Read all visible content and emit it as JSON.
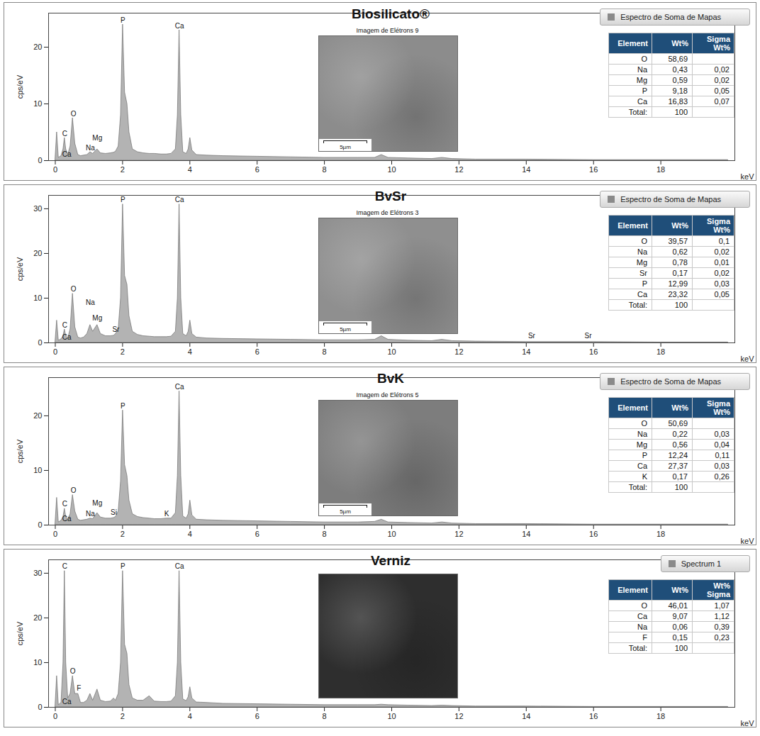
{
  "chart_data": [
    {
      "type": "area",
      "title": "Biosilicato®",
      "x_label": "keV",
      "y_label": "cps/eV",
      "xlim": [
        -0.2,
        20.2
      ],
      "xticks": [
        0,
        2,
        4,
        6,
        8,
        10,
        12,
        14,
        16,
        18
      ],
      "ylim": [
        0,
        26
      ],
      "yticks": [
        0,
        10,
        20
      ],
      "grid": false,
      "legend": "top-right",
      "x": [
        0,
        0.05,
        0.1,
        0.18,
        0.24,
        0.28,
        0.32,
        0.38,
        0.45,
        0.52,
        0.59,
        0.68,
        0.76,
        0.85,
        0.95,
        1.04,
        1.12,
        1.25,
        1.35,
        1.5,
        1.65,
        1.74,
        1.8,
        1.88,
        1.95,
        2.01,
        2.07,
        2.14,
        2.2,
        2.3,
        2.45,
        2.62,
        2.8,
        2.95,
        3.15,
        3.31,
        3.45,
        3.58,
        3.64,
        3.69,
        3.74,
        3.8,
        3.9,
        3.96,
        4.01,
        4.07,
        4.2,
        4.5,
        5,
        6,
        7,
        8,
        9,
        9.5,
        9.7,
        9.9,
        10.5,
        11.2,
        11.5,
        11.8,
        12.5,
        14,
        16,
        18,
        20
      ],
      "series": [
        {
          "name": "Espectro de Soma de Mapas",
          "color": "#b3b3b3",
          "values": [
            0,
            5,
            0.5,
            0.8,
            2,
            4,
            2,
            1,
            2.5,
            7.5,
            3,
            1,
            0.8,
            0.9,
            1,
            1.5,
            1.2,
            2,
            1.3,
            1.2,
            1.3,
            1.4,
            1.6,
            2.5,
            8,
            24,
            12,
            10,
            5,
            2,
            1.5,
            1.3,
            1.2,
            1.2,
            1.1,
            1.1,
            1.2,
            2,
            8,
            23,
            8,
            1.5,
            1.2,
            2,
            4,
            1.8,
            1,
            0.9,
            0.8,
            0.7,
            0.6,
            0.5,
            0.5,
            0.5,
            1,
            0.5,
            0.4,
            0.3,
            0.5,
            0.3,
            0.2,
            0.2,
            0.1,
            0.1,
            0.1
          ]
        }
      ],
      "annotations": [
        {
          "text": "P",
          "x": 2.01,
          "y": 24
        },
        {
          "text": "Ca",
          "x": 3.69,
          "y": 23
        },
        {
          "text": "C",
          "x": 0.28,
          "y": 4
        },
        {
          "text": "Ca",
          "x": 0.34,
          "y": 0.3
        },
        {
          "text": "O",
          "x": 0.54,
          "y": 7.5
        },
        {
          "text": "Na",
          "x": 1.04,
          "y": 1.5
        },
        {
          "text": "Mg",
          "x": 1.25,
          "y": 3.2
        }
      ],
      "image": {
        "title": "Imagem de Elétrons 9",
        "scale_bar": "5µm",
        "color": "#8c8c8c"
      },
      "table": {
        "columns": [
          "Element",
          "Wt%",
          "Sigma Wt%"
        ],
        "rows": [
          [
            "O",
            "58,69",
            null
          ],
          [
            "Na",
            "0,43",
            "0,02"
          ],
          [
            "Mg",
            "0,59",
            "0,02"
          ],
          [
            "P",
            "9,18",
            "0,05"
          ],
          [
            "Ca",
            "16,83",
            "0,07"
          ],
          [
            "Total:",
            "100",
            null
          ]
        ]
      }
    },
    {
      "type": "area",
      "title": "BvSr",
      "x_label": "keV",
      "y_label": "cps/eV",
      "xlim": [
        -0.2,
        20.2
      ],
      "xticks": [
        0,
        2,
        4,
        6,
        8,
        10,
        12,
        14,
        16,
        18
      ],
      "ylim": [
        0,
        33
      ],
      "yticks": [
        0,
        10,
        20,
        30
      ],
      "grid": false,
      "legend": "top-right",
      "x": [
        0,
        0.05,
        0.1,
        0.18,
        0.24,
        0.28,
        0.32,
        0.38,
        0.45,
        0.52,
        0.59,
        0.68,
        0.76,
        0.85,
        0.95,
        1.04,
        1.12,
        1.25,
        1.35,
        1.5,
        1.65,
        1.74,
        1.8,
        1.88,
        1.95,
        2.01,
        2.07,
        2.14,
        2.2,
        2.3,
        2.45,
        2.62,
        2.8,
        2.95,
        3.15,
        3.31,
        3.45,
        3.58,
        3.64,
        3.69,
        3.74,
        3.8,
        3.9,
        3.96,
        4.01,
        4.07,
        4.2,
        4.5,
        5,
        6,
        7,
        8,
        9,
        9.5,
        9.7,
        9.9,
        10.5,
        11.2,
        11.5,
        11.8,
        12.5,
        14,
        16,
        18,
        20
      ],
      "series": [
        {
          "name": "Espectro de Soma de Mapas",
          "color": "#b3b3b3",
          "values": [
            0,
            5,
            0.5,
            0.8,
            1.5,
            3,
            1.5,
            1,
            3,
            11,
            3.5,
            1.2,
            1,
            1.2,
            2,
            4,
            2.5,
            4,
            2,
            1.5,
            1.5,
            1.6,
            2,
            3,
            10,
            31,
            15,
            13,
            6,
            2.5,
            1.8,
            1.5,
            1.4,
            1.3,
            1.3,
            1.3,
            1.4,
            2.5,
            10,
            31,
            10,
            2,
            1.5,
            2.5,
            5,
            2,
            1.2,
            1,
            0.9,
            0.8,
            0.7,
            0.6,
            0.6,
            0.7,
            1.5,
            0.7,
            0.5,
            0.4,
            0.7,
            0.4,
            0.3,
            0.2,
            0.2,
            0.1,
            0.1
          ]
        }
      ],
      "annotations": [
        {
          "text": "P",
          "x": 2.01,
          "y": 31
        },
        {
          "text": "Ca",
          "x": 3.69,
          "y": 31
        },
        {
          "text": "C",
          "x": 0.28,
          "y": 3
        },
        {
          "text": "Ca",
          "x": 0.34,
          "y": 0.3
        },
        {
          "text": "O",
          "x": 0.54,
          "y": 11
        },
        {
          "text": "Na",
          "x": 1.04,
          "y": 8
        },
        {
          "text": "Mg",
          "x": 1.25,
          "y": 4.5
        },
        {
          "text": "Sr",
          "x": 1.8,
          "y": 2
        },
        {
          "text": "Sr",
          "x": 14.16,
          "y": 0.5
        },
        {
          "text": "Sr",
          "x": 15.84,
          "y": 0.5
        }
      ],
      "image": {
        "title": "Imagem de Elétrons 3",
        "scale_bar": "5µm",
        "color": "#8f8f8f"
      },
      "table": {
        "columns": [
          "Element",
          "Wt%",
          "Sigma Wt%"
        ],
        "rows": [
          [
            "O",
            "39,57",
            "0,1"
          ],
          [
            "Na",
            "0,62",
            "0,02"
          ],
          [
            "Mg",
            "0,78",
            "0,01"
          ],
          [
            "Sr",
            "0,17",
            "0,02"
          ],
          [
            "P",
            "12,99",
            "0,03"
          ],
          [
            "Ca",
            "23,32",
            "0,05"
          ],
          [
            "Total:",
            "100",
            null
          ]
        ]
      }
    },
    {
      "type": "area",
      "title": "BvK",
      "x_label": "keV",
      "y_label": "cps/eV",
      "xlim": [
        -0.2,
        20.2
      ],
      "xticks": [
        0,
        2,
        4,
        6,
        8,
        10,
        12,
        14,
        16,
        18
      ],
      "ylim": [
        0,
        27
      ],
      "yticks": [
        0,
        10,
        20
      ],
      "grid": false,
      "legend": "top-right",
      "x": [
        0,
        0.05,
        0.1,
        0.18,
        0.24,
        0.28,
        0.32,
        0.38,
        0.45,
        0.52,
        0.59,
        0.68,
        0.76,
        0.85,
        0.95,
        1.04,
        1.12,
        1.25,
        1.35,
        1.5,
        1.65,
        1.74,
        1.8,
        1.88,
        1.95,
        2.01,
        2.07,
        2.14,
        2.2,
        2.3,
        2.45,
        2.62,
        2.8,
        2.95,
        3.15,
        3.31,
        3.45,
        3.58,
        3.64,
        3.69,
        3.74,
        3.8,
        3.9,
        3.96,
        4.01,
        4.07,
        4.2,
        4.5,
        5,
        6,
        7,
        8,
        9,
        9.5,
        9.7,
        9.9,
        10.5,
        11.2,
        11.5,
        11.8,
        12.5,
        14,
        16,
        18,
        20
      ],
      "series": [
        {
          "name": "Espectro de Soma de Mapas",
          "color": "#b3b3b3",
          "values": [
            0,
            5,
            0.5,
            0.8,
            1.5,
            3,
            1.5,
            1,
            2,
            5.5,
            2.5,
            1,
            0.8,
            0.9,
            1,
            1.2,
            1.1,
            2.2,
            1.4,
            1.2,
            1.2,
            1.3,
            1.5,
            2.5,
            8,
            21,
            11,
            9,
            4.5,
            2,
            1.5,
            1.3,
            1.2,
            1.1,
            1.1,
            1.2,
            1.2,
            2.2,
            9,
            24.5,
            9,
            1.6,
            1.2,
            2,
            4.5,
            1.8,
            1,
            0.9,
            0.8,
            0.7,
            0.6,
            0.5,
            0.5,
            0.6,
            1,
            0.5,
            0.4,
            0.3,
            0.5,
            0.3,
            0.2,
            0.2,
            0.1,
            0.1,
            0.1
          ]
        }
      ],
      "annotations": [
        {
          "text": "P",
          "x": 2.01,
          "y": 21
        },
        {
          "text": "Ca",
          "x": 3.69,
          "y": 24.5
        },
        {
          "text": "C",
          "x": 0.28,
          "y": 3
        },
        {
          "text": "Ca",
          "x": 0.34,
          "y": 0.3
        },
        {
          "text": "O",
          "x": 0.54,
          "y": 5.5
        },
        {
          "text": "Na",
          "x": 1.04,
          "y": 1.2
        },
        {
          "text": "Mg",
          "x": 1.25,
          "y": 3.2
        },
        {
          "text": "Si",
          "x": 1.74,
          "y": 1.5
        },
        {
          "text": "K",
          "x": 3.31,
          "y": 1.2
        }
      ],
      "image": {
        "title": "Imagem de Elétrons 5",
        "scale_bar": "5µm",
        "color": "#7d7d7d"
      },
      "table": {
        "columns": [
          "Element",
          "Wt%",
          "Sigma Wt%"
        ],
        "rows": [
          [
            "O",
            "50,69",
            null
          ],
          [
            "Na",
            "0,22",
            "0,03"
          ],
          [
            "Mg",
            "0,56",
            "0,04"
          ],
          [
            "P",
            "12,24",
            "0,11"
          ],
          [
            "Ca",
            "27,37",
            "0,03"
          ],
          [
            "K",
            "0,17",
            "0,26"
          ],
          [
            "Total:",
            "100",
            null
          ]
        ]
      }
    },
    {
      "type": "area",
      "title": "Verniz",
      "x_label": "keV",
      "y_label": "cps/eV",
      "xlim": [
        -0.2,
        20.2
      ],
      "xticks": [
        0,
        2,
        4,
        6,
        8,
        10,
        12,
        14,
        16,
        18
      ],
      "ylim": [
        0,
        33
      ],
      "yticks": [
        0,
        10,
        20,
        30
      ],
      "grid": false,
      "legend": "top-right",
      "x": [
        0,
        0.05,
        0.1,
        0.18,
        0.24,
        0.28,
        0.32,
        0.38,
        0.45,
        0.52,
        0.59,
        0.68,
        0.76,
        0.85,
        0.95,
        1.04,
        1.12,
        1.25,
        1.35,
        1.5,
        1.65,
        1.74,
        1.8,
        1.88,
        1.95,
        2.01,
        2.07,
        2.14,
        2.2,
        2.3,
        2.45,
        2.62,
        2.8,
        2.95,
        3.15,
        3.31,
        3.45,
        3.58,
        3.64,
        3.69,
        3.74,
        3.8,
        3.9,
        3.96,
        4.01,
        4.07,
        4.2,
        4.5,
        5,
        6,
        7,
        8,
        9,
        9.5,
        9.7,
        9.9,
        10.5,
        11.2,
        11.5,
        11.8,
        12.5,
        14,
        16,
        18,
        20
      ],
      "series": [
        {
          "name": "Spectrum 1",
          "color": "#b3b3b3",
          "values": [
            0,
            7,
            0.5,
            1,
            10,
            30.5,
            10,
            2,
            3,
            7,
            3,
            3,
            1,
            1,
            1.5,
            3,
            1.5,
            4,
            1.5,
            1.2,
            1.3,
            2,
            1.5,
            3,
            10,
            30.5,
            14,
            12,
            5,
            2,
            1.5,
            1.5,
            2.5,
            1.3,
            1.2,
            1.2,
            1.3,
            2.5,
            10,
            30.5,
            10,
            1.8,
            1.4,
            2.3,
            4.5,
            2,
            1.1,
            1,
            0.8,
            0.7,
            0.6,
            0.5,
            0.5,
            0.5,
            0.6,
            0.5,
            0.4,
            0.3,
            0.4,
            0.3,
            0.2,
            0.2,
            0.1,
            0.1,
            0.1
          ]
        }
      ],
      "annotations": [
        {
          "text": "C",
          "x": 0.28,
          "y": 30.5
        },
        {
          "text": "P",
          "x": 2.01,
          "y": 30.5
        },
        {
          "text": "Ca",
          "x": 3.69,
          "y": 30.5
        },
        {
          "text": "Ca",
          "x": 0.34,
          "y": 0.3
        },
        {
          "text": "O",
          "x": 0.52,
          "y": 7
        },
        {
          "text": "F",
          "x": 0.7,
          "y": 3.2
        }
      ],
      "image": {
        "color": "#2e2e2e"
      },
      "table": {
        "columns": [
          "Element",
          "Wt%",
          "Wt% Sigma"
        ],
        "rows": [
          [
            "O",
            "46,01",
            "1,07"
          ],
          [
            "Ca",
            "9,07",
            "1,12"
          ],
          [
            "Na",
            "0,06",
            "0,39"
          ],
          [
            "F",
            "0,15",
            "0,23"
          ],
          [
            "Total:",
            "100",
            null
          ]
        ]
      }
    }
  ]
}
